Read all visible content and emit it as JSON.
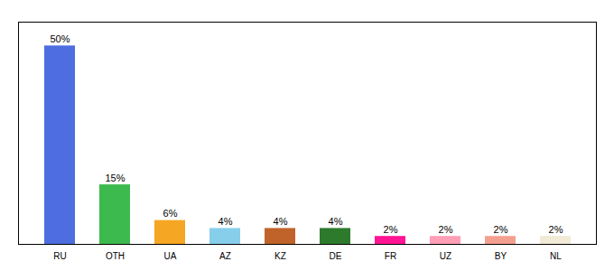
{
  "chart_data": {
    "type": "bar",
    "categories": [
      "RU",
      "OTH",
      "UA",
      "AZ",
      "KZ",
      "DE",
      "FR",
      "UZ",
      "BY",
      "NL"
    ],
    "values": [
      50,
      15,
      6,
      4,
      4,
      4,
      2,
      2,
      2,
      2
    ],
    "value_labels": [
      "50%",
      "15%",
      "6%",
      "4%",
      "4%",
      "4%",
      "2%",
      "2%",
      "2%",
      "2%"
    ],
    "colors": [
      "#4d6de0",
      "#3dba4e",
      "#f5a623",
      "#87ceeb",
      "#c0632a",
      "#2d7a2d",
      "#ff1493",
      "#ff9eb5",
      "#f4a090",
      "#f0ead6"
    ],
    "ylim": [
      0,
      56
    ],
    "data_labels": true,
    "tick_labels": "x",
    "grid": false
  }
}
